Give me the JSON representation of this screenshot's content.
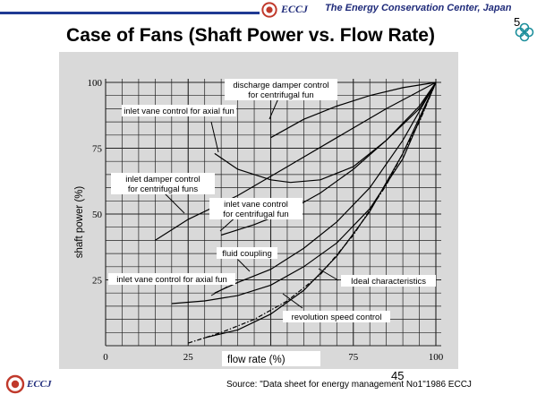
{
  "header": {
    "logo_text": "ECCJ",
    "org_name": "The Energy Conservation Center, Japan",
    "page_number": "5"
  },
  "title": "Case of Fans (Shaft Power vs. Flow Rate)",
  "footer": {
    "logo_text": "ECCJ",
    "slide_number": "45",
    "source": "Source: \"Data sheet for energy management No1\"1986 ECCJ"
  },
  "colors": {
    "brand": "#1f2b7a",
    "chart_bg": "#d9d9d9",
    "clover": "#1d8f9c"
  },
  "chart_data": {
    "type": "line",
    "xlabel": "flow rate     (%)",
    "ylabel": "shaft power   (%)",
    "xlim": [
      0,
      100
    ],
    "ylim": [
      0,
      100
    ],
    "x_ticks": [
      "0",
      "25",
      "50",
      "75",
      "100"
    ],
    "y_ticks": [
      "25",
      "50",
      "75",
      "100"
    ],
    "grid": true,
    "series": [
      {
        "name": "discharge damper control for centrifugal fun",
        "x": [
          50,
          60,
          70,
          80,
          90,
          100
        ],
        "y": [
          79,
          86,
          91,
          95,
          98,
          100
        ]
      },
      {
        "name": "inlet  vane  control for axial fun",
        "x": [
          33,
          40,
          50,
          56,
          65,
          75,
          85,
          95,
          100
        ],
        "y": [
          73,
          67,
          63,
          62,
          63,
          68,
          78,
          90,
          100
        ]
      },
      {
        "name": "inlet damper control for centrifugal funs",
        "x": [
          15,
          25,
          40,
          55,
          70,
          85,
          100
        ],
        "y": [
          40,
          48,
          57,
          68,
          79,
          90,
          100
        ]
      },
      {
        "name": "inlet  vane  control for centrifugal fun",
        "x": [
          35,
          45,
          55,
          65,
          75,
          85,
          95,
          100
        ],
        "y": [
          42,
          46,
          51,
          58,
          67,
          78,
          91,
          100
        ]
      },
      {
        "name": "fluid coupling",
        "x": [
          33,
          40,
          50,
          60,
          70,
          80,
          90,
          100
        ],
        "y": [
          20,
          24,
          29,
          37,
          47,
          60,
          78,
          100
        ]
      },
      {
        "name": "inlet  vane  control for axial fun",
        "x": [
          20,
          30,
          40,
          50,
          60,
          70,
          80,
          90,
          100
        ],
        "y": [
          16,
          17,
          19,
          23,
          30,
          39,
          52,
          71,
          100
        ]
      },
      {
        "name": "Ideal characteristics",
        "x": [
          30,
          40,
          50,
          60,
          70,
          80,
          90,
          100
        ],
        "y": [
          3,
          6,
          12,
          21,
          34,
          51,
          73,
          100
        ]
      },
      {
        "name": "revolution speed  control",
        "x": [
          25,
          35,
          45,
          55,
          65,
          75,
          85,
          95,
          100
        ],
        "y": [
          1,
          5,
          10,
          17,
          27,
          42,
          61,
          85,
          100
        ]
      }
    ]
  }
}
